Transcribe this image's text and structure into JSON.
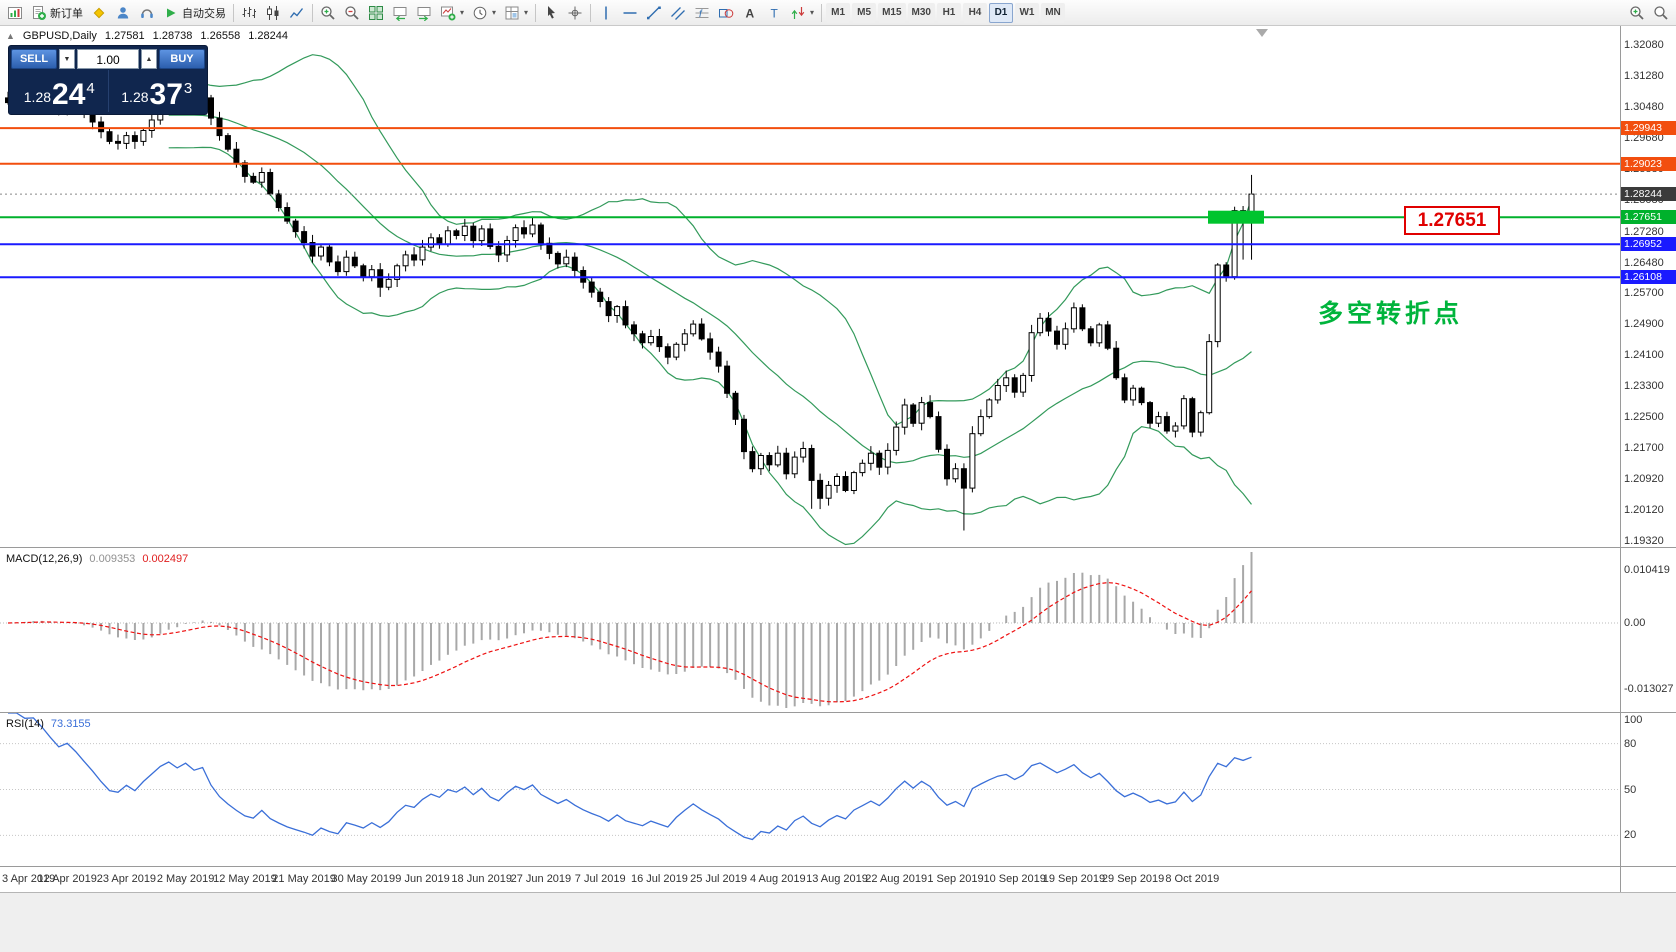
{
  "colors": {
    "up_candle": "#ffffff",
    "down_candle": "#000000",
    "candle_outline": "#000000",
    "bollinger": "#339a5b",
    "macd_histogram": "#a8a8a8",
    "macd_signal": "#ee1111",
    "rsi_line": "#3a6fd8",
    "annotation_green": "#00b43c",
    "callout_red": "#e00000",
    "current_price_bg": "#3b3b3b",
    "resistance_orange": "#f24e0e",
    "support_blue": "#1a1aff",
    "pivot_green": "#00b12c"
  },
  "toolbar": {
    "items": [
      {
        "icon": "terminal-icon",
        "name": "terminal-button"
      },
      {
        "icon": "new-order-icon",
        "name": "new-order-button",
        "label": "新订单"
      },
      {
        "icon": "metaeditor-icon",
        "name": "metaeditor-button"
      },
      {
        "icon": "community-icon",
        "name": "community-button"
      },
      {
        "icon": "support-icon",
        "name": "support-button"
      },
      {
        "icon": "autotrading-icon",
        "name": "autotrading-button",
        "label": "自动交易"
      },
      {
        "sep": true
      },
      {
        "icon": "bar-chart-icon",
        "name": "bar-chart-button"
      },
      {
        "icon": "candlestick-chart-icon",
        "name": "candlestick-chart-button"
      },
      {
        "icon": "line-chart-icon",
        "name": "line-chart-button"
      },
      {
        "sep": true
      },
      {
        "icon": "zoom-in-icon",
        "name": "zoom-in-button"
      },
      {
        "icon": "zoom-out-icon",
        "name": "zoom-out-button"
      },
      {
        "icon": "tile-windows-icon",
        "name": "tile-windows-button"
      },
      {
        "icon": "auto-scroll-icon",
        "name": "auto-scroll-button"
      },
      {
        "icon": "chart-shift-icon",
        "name": "chart-shift-button"
      },
      {
        "icon": "new-chart-icon",
        "name": "new-chart-button",
        "dropdown": true
      },
      {
        "icon": "periods-icon",
        "name": "periods-button",
        "dropdown": true
      },
      {
        "icon": "templates-icon",
        "name": "templates-button",
        "dropdown": true
      },
      {
        "sep": true
      },
      {
        "icon": "cursor-icon",
        "name": "cursor-button"
      },
      {
        "icon": "crosshair-icon",
        "name": "crosshair-button"
      },
      {
        "sep": true
      },
      {
        "icon": "vertical-line-icon",
        "name": "vertical-line-button"
      },
      {
        "icon": "horizontal-line-icon",
        "name": "horizontal-line-button"
      },
      {
        "icon": "trendline-icon",
        "name": "trendline-button"
      },
      {
        "icon": "channel-icon",
        "name": "channel-button"
      },
      {
        "icon": "fibonacci-icon",
        "name": "fibonacci-button"
      },
      {
        "icon": "shapes-icon",
        "name": "shapes-button"
      },
      {
        "icon": "text-icon",
        "name": "text-button"
      },
      {
        "icon": "label-icon",
        "name": "label-button"
      },
      {
        "icon": "arrows-icon",
        "name": "arrows-button",
        "dropdown": true
      },
      {
        "sep": true
      }
    ],
    "timeframes": [
      "M1",
      "M5",
      "M15",
      "M30",
      "H1",
      "H4",
      "D1",
      "W1",
      "MN"
    ],
    "active_timeframe": "D1",
    "right_items": [
      {
        "icon": "magnifier-plus-icon",
        "name": "magnifier-plus-button"
      },
      {
        "icon": "magnifier-icon",
        "name": "magnifier-button"
      }
    ]
  },
  "header": {
    "toggle_glyph": "▲",
    "symbol": "GBPUSD,Daily",
    "open": "1.27581",
    "high": "1.28738",
    "low": "1.26558",
    "close": "1.28244"
  },
  "trade_panel": {
    "sell": "SELL",
    "buy": "BUY",
    "volume": "1.00",
    "spin_down_glyph": "▼",
    "spin_up_glyph": "▲",
    "bid_main": "1.28",
    "bid_big": "24",
    "bid_sup": "4",
    "ask_main": "1.28",
    "ask_big": "37",
    "ask_sup": "3"
  },
  "price_axis": {
    "ticks": [
      "1.32080",
      "1.31280",
      "1.30480",
      "1.29680",
      "1.28880",
      "1.28080",
      "1.27280",
      "1.26480",
      "1.25700",
      "1.24900",
      "1.24100",
      "1.23300",
      "1.22500",
      "1.21700",
      "1.20920",
      "1.20120",
      "1.19320"
    ],
    "current": {
      "label": "1.28244",
      "value": 1.28244
    },
    "levels": [
      {
        "label": "1.29943",
        "value": 1.29943,
        "color": "#f24e0e",
        "type": "resistance-line"
      },
      {
        "label": "1.29023",
        "value": 1.29023,
        "color": "#f24e0e",
        "type": "resistance-line"
      },
      {
        "label": "1.27651",
        "value": 1.27651,
        "color": "#00b12c",
        "type": "pivot-line"
      },
      {
        "label": "1.26952",
        "value": 1.26952,
        "color": "#1a1aff",
        "type": "support-line"
      },
      {
        "label": "1.26108",
        "value": 1.26108,
        "color": "#1a1aff",
        "type": "support-line"
      }
    ]
  },
  "annotations": {
    "pivot_callout": "1.27651",
    "cn_text": "多空转折点",
    "zone_value": 1.27651
  },
  "macd": {
    "name": "MACD(12,26,9)",
    "main_value": "0.009353",
    "signal_value": "0.002497",
    "axis_max": "0.010419",
    "axis_zero": "0.00",
    "axis_min": "-0.013027",
    "params": [
      12,
      26,
      9
    ]
  },
  "rsi": {
    "name": "RSI(14)",
    "value": "73.3155",
    "axis": [
      "100",
      "80",
      "50",
      "20"
    ],
    "levels": [
      80,
      50,
      20
    ],
    "period": 14
  },
  "chart_data": {
    "type": "candlestick",
    "symbol": "GBPUSD",
    "timeframe": "Daily",
    "y_range": [
      1.19166,
      1.32569
    ],
    "label_step": 7,
    "x_labels": [
      "3 Apr 2019",
      "12 Apr 2019",
      "23 Apr 2019",
      "2 May 2019",
      "12 May 2019",
      "21 May 2019",
      "30 May 2019",
      "9 Jun 2019",
      "18 Jun 2019",
      "27 Jun 2019",
      "7 Jul 2019",
      "16 Jul 2019",
      "25 Jul 2019",
      "4 Aug 2019",
      "13 Aug 2019",
      "22 Aug 2019",
      "1 Sep 2019",
      "10 Sep 2019",
      "19 Sep 2019",
      "29 Sep 2019",
      "8 Oct 2019"
    ],
    "closes": [
      1.306,
      1.3075,
      1.3068,
      1.3082,
      1.307,
      1.3055,
      1.304,
      1.3062,
      1.3048,
      1.303,
      1.301,
      1.2985,
      1.296,
      1.2955,
      1.2975,
      1.296,
      1.2988,
      1.3015,
      1.3048,
      1.307,
      1.3055,
      1.3078,
      1.306,
      1.3072,
      1.302,
      1.2975,
      1.294,
      1.2905,
      1.287,
      1.2855,
      1.288,
      1.2825,
      1.279,
      1.2755,
      1.2728,
      1.27,
      1.2665,
      1.2688,
      1.265,
      1.2625,
      1.2662,
      1.264,
      1.2612,
      1.263,
      1.2585,
      1.2605,
      1.264,
      1.2668,
      1.2655,
      1.2688,
      1.2712,
      1.2695,
      1.273,
      1.2718,
      1.2742,
      1.2705,
      1.2735,
      1.269,
      1.2668,
      1.2705,
      1.2738,
      1.2722,
      1.2745,
      1.2698,
      1.2672,
      1.2645,
      1.2662,
      1.2628,
      1.2598,
      1.2572,
      1.2548,
      1.2512,
      1.2535,
      1.2488,
      1.2465,
      1.2442,
      1.2458,
      1.2432,
      1.2405,
      1.2438,
      1.2465,
      1.249,
      1.2452,
      1.2418,
      1.2382,
      1.2312,
      1.2245,
      1.2162,
      1.2118,
      1.2152,
      1.2128,
      1.2158,
      1.2105,
      1.2148,
      1.217,
      1.2088,
      1.2042,
      1.2075,
      1.2098,
      1.2062,
      1.2108,
      1.2132,
      1.2158,
      1.2122,
      1.2165,
      1.2225,
      1.2282,
      1.2235,
      1.2288,
      1.2252,
      1.2168,
      1.2092,
      1.2118,
      1.2068,
      1.2208,
      1.2252,
      1.2295,
      1.2332,
      1.2352,
      1.2315,
      1.2358,
      1.2468,
      1.2505,
      1.2472,
      1.2438,
      1.2478,
      1.2532,
      1.2478,
      1.2442,
      1.2488,
      1.2428,
      1.2352,
      1.2295,
      1.2325,
      1.2288,
      1.2235,
      1.2252,
      1.2215,
      1.2228,
      1.2298,
      1.2212,
      1.2262,
      1.2445,
      1.2642,
      1.2612,
      1.2782,
      1.2758,
      1.28244
    ],
    "high_overrides": {
      "1": 1.3095,
      "3": 1.3112,
      "18": 1.3085,
      "21": 1.3108,
      "22": 1.312,
      "145": 1.2792
    },
    "low_overrides": {
      "44": 1.256,
      "95": 1.2015,
      "96": 1.2014,
      "113": 1.1959,
      "146": 1.2656
    },
    "last_candle": {
      "open": 1.27581,
      "high": 1.28738,
      "low": 1.26558,
      "close": 1.28244
    },
    "indicators": {
      "bollinger": {
        "period": 20,
        "deviation": 2
      },
      "macd": [
        12,
        26,
        9
      ],
      "rsi": 14
    }
  }
}
